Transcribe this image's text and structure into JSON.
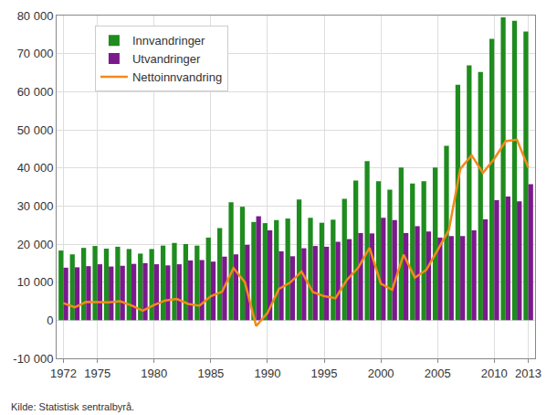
{
  "chart_data": {
    "type": "bar",
    "source": "Kilde: Statistisk sentralbyrå.",
    "x": [
      1972,
      1973,
      1974,
      1975,
      1976,
      1977,
      1978,
      1979,
      1980,
      1981,
      1982,
      1983,
      1984,
      1985,
      1986,
      1987,
      1988,
      1989,
      1990,
      1991,
      1992,
      1993,
      1994,
      1995,
      1996,
      1997,
      1998,
      1999,
      2000,
      2001,
      2002,
      2003,
      2004,
      2005,
      2006,
      2007,
      2008,
      2009,
      2010,
      2011,
      2012,
      2013
    ],
    "series": [
      {
        "name": "Innvandringer",
        "type": "bar",
        "color": "#1e8c1e",
        "values": [
          18300,
          17300,
          19000,
          19500,
          18800,
          19300,
          18700,
          17500,
          18700,
          19600,
          20300,
          20000,
          19600,
          21700,
          24200,
          31000,
          29800,
          25800,
          25500,
          26300,
          26700,
          31700,
          26900,
          25600,
          26400,
          31900,
          36700,
          41800,
          36500,
          34300,
          40100,
          35900,
          36500,
          40100,
          45800,
          61800,
          66900,
          65200,
          73900,
          79500,
          78600,
          75800
        ]
      },
      {
        "name": "Utvandringer",
        "type": "bar",
        "color": "#7b1a8c",
        "values": [
          13800,
          13900,
          14200,
          14700,
          14100,
          14300,
          14800,
          15000,
          14700,
          14400,
          14700,
          15700,
          15800,
          15400,
          16700,
          17300,
          19800,
          27300,
          23600,
          18100,
          16800,
          18900,
          19500,
          19300,
          20600,
          21300,
          22900,
          22800,
          26900,
          26300,
          22900,
          24700,
          23300,
          21700,
          22100,
          22100,
          23600,
          26500,
          31500,
          32500,
          31200,
          35700
        ]
      },
      {
        "name": "Nettoinnvandring",
        "type": "line",
        "color": "#f28a1c",
        "values": [
          4500,
          3400,
          4800,
          4800,
          4700,
          5000,
          3900,
          2500,
          4000,
          5200,
          5600,
          4300,
          3800,
          6300,
          7500,
          13700,
          10000,
          -1500,
          1900,
          8200,
          9900,
          12800,
          7400,
          6300,
          5800,
          10600,
          13800,
          19000,
          9600,
          8000,
          17200,
          11200,
          13200,
          18400,
          23700,
          39700,
          43300,
          38700,
          42400,
          47000,
          47400,
          40100
        ]
      }
    ],
    "xlim": [
      1971.4,
      2013.6
    ],
    "xticks": [
      1972,
      1975,
      1980,
      1985,
      1990,
      1995,
      2000,
      2005,
      2010,
      2013
    ],
    "ylim": [
      -10000,
      80000
    ],
    "yticks": [
      {
        "value": -10000,
        "label": "-10 000"
      },
      0,
      {
        "value": 10000,
        "label": "10 000"
      },
      {
        "value": 20000,
        "label": "20 000"
      },
      {
        "value": 30000,
        "label": "30 000"
      },
      {
        "value": 40000,
        "label": "40 000"
      },
      {
        "value": 50000,
        "label": "50 000"
      },
      {
        "value": 60000,
        "label": "60 000"
      },
      {
        "value": 70000,
        "label": "70 000"
      },
      {
        "value": 80000,
        "label": "80 000"
      }
    ],
    "grid": true,
    "legend": "top-left"
  }
}
